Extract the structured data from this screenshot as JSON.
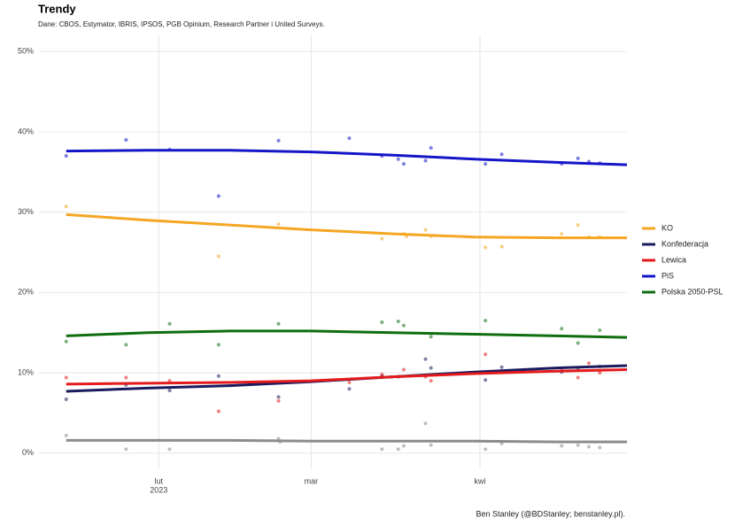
{
  "chart_data": {
    "type": "line",
    "title": "Trendy",
    "subtitle": "Dane: CBOS, Estymator, IBRIS, IPSOS, PGB Opinium, Research Partner i United Surveys.",
    "caption": "Ben Stanley (@BDStanley; benstanley.pl).",
    "xlim": [
      10,
      118
    ],
    "xticks": [
      {
        "value": 32,
        "label": "lut"
      },
      {
        "value": 60,
        "label": "mar"
      },
      {
        "value": 91,
        "label": "kwi"
      }
    ],
    "xtick_sublabel": "2023",
    "ylim": [
      -2,
      52
    ],
    "yticks": [
      {
        "value": 0,
        "label": "0%"
      },
      {
        "value": 10,
        "label": "10%"
      },
      {
        "value": 20,
        "label": "20%"
      },
      {
        "value": 30,
        "label": "30%"
      },
      {
        "value": 40,
        "label": "40%"
      },
      {
        "value": 50,
        "label": "50%"
      }
    ],
    "grid": true,
    "legend": "right",
    "series": [
      {
        "name": "KO",
        "color": "#f5a623",
        "x": [
          15,
          30,
          45,
          60,
          75,
          90,
          105,
          118
        ],
        "values": [
          29.7,
          29.0,
          28.4,
          27.8,
          27.3,
          26.9,
          26.8,
          26.8
        ],
        "points": {
          "x": [
            15,
            43,
            54,
            73,
            77,
            77.5,
            81,
            82,
            92,
            95,
            106,
            109,
            111,
            113
          ],
          "values": [
            30.7,
            24.5,
            28.5,
            26.7,
            27.3,
            27,
            27.8,
            27,
            25.6,
            25.7,
            27.3,
            28.4,
            26.9,
            26.9
          ]
        }
      },
      {
        "name": "Konfederacja",
        "color": "#1a1a5e",
        "x": [
          15,
          30,
          45,
          60,
          75,
          90,
          105,
          118
        ],
        "values": [
          7.7,
          8.1,
          8.4,
          8.9,
          9.5,
          10.1,
          10.6,
          10.9
        ],
        "points": {
          "x": [
            15,
            26,
            34,
            43,
            54,
            67,
            73,
            76,
            81,
            82,
            92,
            95,
            106,
            109,
            113
          ],
          "values": [
            6.7,
            8.5,
            7.8,
            9.6,
            7,
            8,
            9.6,
            9.5,
            11.7,
            10.6,
            9.1,
            10.7,
            10.1,
            10.6,
            10.8
          ]
        }
      },
      {
        "name": "Lewica",
        "color": "#e41a1c",
        "x": [
          15,
          30,
          45,
          60,
          75,
          90,
          105,
          118
        ],
        "values": [
          8.6,
          8.7,
          8.8,
          9.0,
          9.5,
          9.9,
          10.2,
          10.4
        ],
        "points": {
          "x": [
            15,
            26,
            34,
            43,
            54,
            67,
            73,
            77,
            81,
            82,
            92,
            106,
            109,
            111,
            113
          ],
          "values": [
            9.4,
            9.4,
            9,
            5.2,
            6.5,
            8.8,
            9.8,
            10.4,
            9.5,
            9,
            12.3,
            10.3,
            9.4,
            11.2,
            10
          ]
        }
      },
      {
        "name": "PiS",
        "color": "#1515c8",
        "x": [
          15,
          30,
          45,
          60,
          75,
          90,
          105,
          118
        ],
        "values": [
          37.6,
          37.7,
          37.7,
          37.5,
          37.1,
          36.6,
          36.2,
          35.9
        ],
        "points": {
          "x": [
            15,
            26,
            34,
            43,
            54,
            67,
            73,
            76,
            77,
            81,
            82,
            92,
            95,
            106,
            109,
            111,
            113
          ],
          "values": [
            37,
            39,
            37.8,
            32,
            38.9,
            39.2,
            37,
            36.6,
            36,
            36.4,
            38,
            36,
            37.2,
            36,
            36.7,
            36.3,
            36.1
          ]
        }
      },
      {
        "name": "Polska 2050-PSL",
        "color": "#0f6e0f",
        "x": [
          15,
          30,
          45,
          60,
          75,
          90,
          105,
          118
        ],
        "values": [
          14.6,
          15.0,
          15.2,
          15.2,
          15.0,
          14.8,
          14.6,
          14.4
        ],
        "points": {
          "x": [
            15,
            26,
            34,
            43,
            54,
            73,
            76,
            77,
            82,
            92,
            106,
            109,
            113
          ],
          "values": [
            13.9,
            13.5,
            16.1,
            13.5,
            16.1,
            16.3,
            16.4,
            15.9,
            14.5,
            16.5,
            15.5,
            13.7,
            15.3
          ]
        }
      },
      {
        "color": "#8c8c8c",
        "x": [
          15,
          30,
          45,
          60,
          75,
          90,
          105,
          118
        ],
        "values": [
          1.6,
          1.6,
          1.6,
          1.5,
          1.5,
          1.5,
          1.4,
          1.4
        ],
        "points": {
          "x": [
            15,
            26,
            34,
            54,
            54.3,
            73,
            76,
            77,
            81,
            82,
            92,
            95,
            106,
            109,
            111,
            113
          ],
          "values": [
            2.2,
            0.5,
            0.5,
            1.8,
            1.4,
            0.5,
            0.5,
            0.9,
            3.7,
            1,
            0.5,
            1.2,
            0.9,
            1,
            0.8,
            0.7
          ]
        }
      }
    ]
  }
}
